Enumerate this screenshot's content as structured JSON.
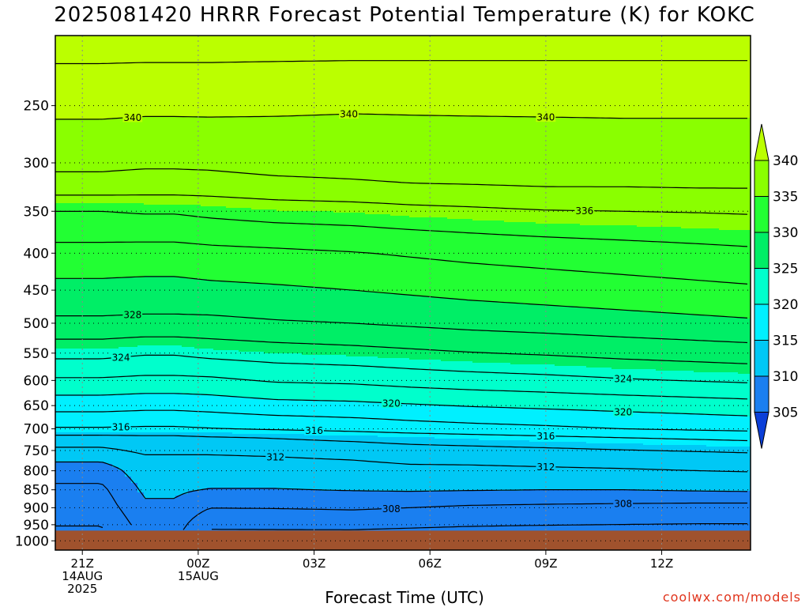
{
  "title": "2025081420 HRRR Forecast Potential Temperature (K) for KOKC",
  "credit": "coolwx.com/models",
  "chart_data": {
    "type": "heatmap",
    "title": "2025081420 HRRR Forecast Potential Temperature (K) for KOKC",
    "xlabel": "Forecast Time (UTC)",
    "ylabel": "",
    "x_start_hour": -0.7,
    "x_end_hour": 17.3,
    "p_top": 200,
    "p_bottom": 1030,
    "surface_pressure": 968,
    "x_ticks": [
      {
        "hour": 0,
        "lines": [
          "21Z",
          "14AUG",
          "2025"
        ]
      },
      {
        "hour": 3,
        "lines": [
          "00Z",
          "15AUG"
        ]
      },
      {
        "hour": 6,
        "lines": [
          "03Z"
        ]
      },
      {
        "hour": 9,
        "lines": [
          "06Z"
        ]
      },
      {
        "hour": 12,
        "lines": [
          "09Z"
        ]
      },
      {
        "hour": 15,
        "lines": [
          "12Z"
        ]
      }
    ],
    "y_ticks": [
      250,
      300,
      350,
      400,
      450,
      500,
      550,
      600,
      650,
      700,
      750,
      800,
      850,
      900,
      950,
      1000
    ],
    "grid": true,
    "colorbar": {
      "levels": [
        305,
        310,
        315,
        320,
        325,
        330,
        335,
        340
      ],
      "labels": [
        "305",
        "310",
        "315",
        "320",
        "325",
        "330",
        "335",
        "340"
      ],
      "colors": [
        "#0b3fd8",
        "#1a7ff0",
        "#00c8f5",
        "#00f0ff",
        "#00ffcc",
        "#00ee66",
        "#22ff33",
        "#8aff00",
        "#bbff00"
      ],
      "extend": "both"
    },
    "surface_color": "#a0522d",
    "contour_interval": 2,
    "contour_labels": [
      {
        "value": 340,
        "hour": 1.3
      },
      {
        "value": 340,
        "hour": 6.9
      },
      {
        "value": 340,
        "hour": 12.0
      },
      {
        "value": 336,
        "hour": 13.0
      },
      {
        "value": 328,
        "hour": 1.3
      },
      {
        "value": 324,
        "hour": 1.0
      },
      {
        "value": 324,
        "hour": 14.0
      },
      {
        "value": 320,
        "hour": 8.0
      },
      {
        "value": 320,
        "hour": 14.0
      },
      {
        "value": 316,
        "hour": 1.0
      },
      {
        "value": 316,
        "hour": 6.0
      },
      {
        "value": 316,
        "hour": 12.0
      },
      {
        "value": 312,
        "hour": 5.0
      },
      {
        "value": 312,
        "hour": 12.0
      },
      {
        "value": 308,
        "hour": 8.0
      },
      {
        "value": 308,
        "hour": 14.0
      }
    ],
    "profiles": [
      {
        "hour": -0.7,
        "theta": [
          [
            968,
            305.8
          ],
          [
            940,
            306.2
          ],
          [
            890,
            307.0
          ],
          [
            850,
            307.6
          ],
          [
            800,
            308.8
          ],
          [
            760,
            311.0
          ],
          [
            720,
            313.3
          ],
          [
            700,
            315.8
          ],
          [
            650,
            318.8
          ],
          [
            600,
            321.7
          ],
          [
            550,
            324.6
          ],
          [
            500,
            327.6
          ],
          [
            450,
            329.4
          ],
          [
            400,
            331.3
          ],
          [
            350,
            334.0
          ],
          [
            320,
            337.5
          ],
          [
            300,
            338.4
          ],
          [
            250,
            340.5
          ],
          [
            200,
            343.0
          ]
        ]
      },
      {
        "hour": 0.5,
        "theta": [
          [
            968,
            305.8
          ],
          [
            940,
            306.2
          ],
          [
            890,
            307.0
          ],
          [
            850,
            307.6
          ],
          [
            800,
            308.8
          ],
          [
            760,
            311.0
          ],
          [
            720,
            313.3
          ],
          [
            700,
            315.8
          ],
          [
            650,
            318.8
          ],
          [
            600,
            321.7
          ],
          [
            550,
            324.6
          ],
          [
            500,
            327.6
          ],
          [
            450,
            329.4
          ],
          [
            400,
            331.3
          ],
          [
            350,
            334.0
          ],
          [
            320,
            337.5
          ],
          [
            300,
            338.4
          ],
          [
            250,
            340.5
          ],
          [
            200,
            343.0
          ]
        ]
      },
      {
        "hour": 1.6,
        "theta": [
          [
            968,
            308.6
          ],
          [
            940,
            309.0
          ],
          [
            890,
            309.8
          ],
          [
            850,
            310.3
          ],
          [
            800,
            311.2
          ],
          [
            760,
            312.0
          ],
          [
            720,
            313.5
          ],
          [
            700,
            315.7
          ],
          [
            650,
            318.6
          ],
          [
            600,
            321.5
          ],
          [
            550,
            324.2
          ],
          [
            500,
            327.5
          ],
          [
            450,
            329.3
          ],
          [
            400,
            331.2
          ],
          [
            350,
            334.2
          ],
          [
            320,
            337.3
          ],
          [
            300,
            338.3
          ],
          [
            250,
            340.4
          ],
          [
            200,
            343.0
          ]
        ]
      },
      {
        "hour": 2.4,
        "theta": [
          [
            968,
            308.6
          ],
          [
            940,
            309.0
          ],
          [
            890,
            309.8
          ],
          [
            850,
            310.3
          ],
          [
            800,
            311.2
          ],
          [
            760,
            312.0
          ],
          [
            720,
            313.5
          ],
          [
            700,
            315.7
          ],
          [
            650,
            318.6
          ],
          [
            600,
            321.5
          ],
          [
            550,
            324.2
          ],
          [
            500,
            327.5
          ],
          [
            450,
            329.3
          ],
          [
            400,
            331.2
          ],
          [
            350,
            334.2
          ],
          [
            320,
            337.3
          ],
          [
            300,
            338.3
          ],
          [
            250,
            340.4
          ],
          [
            200,
            343.0
          ]
        ]
      },
      {
        "hour": 3.3,
        "theta": [
          [
            968,
            305.9
          ],
          [
            940,
            306.6
          ],
          [
            890,
            308.4
          ],
          [
            850,
            309.9
          ],
          [
            800,
            311.3
          ],
          [
            760,
            312.0
          ],
          [
            720,
            313.8
          ],
          [
            700,
            315.9
          ],
          [
            650,
            318.8
          ],
          [
            600,
            321.6
          ],
          [
            550,
            324.6
          ],
          [
            500,
            327.5
          ],
          [
            450,
            329.5
          ],
          [
            400,
            331.4
          ],
          [
            350,
            334.5
          ],
          [
            320,
            337.3
          ],
          [
            300,
            338.4
          ],
          [
            250,
            340.4
          ],
          [
            200,
            343.0
          ]
        ]
      },
      {
        "hour": 5.0,
        "theta": [
          [
            968,
            305.9
          ],
          [
            940,
            306.8
          ],
          [
            890,
            308.4
          ],
          [
            850,
            309.9
          ],
          [
            800,
            311.3
          ],
          [
            760,
            312.1
          ],
          [
            720,
            314.1
          ],
          [
            700,
            316.2
          ],
          [
            650,
            319.3
          ],
          [
            600,
            322.2
          ],
          [
            550,
            325.0
          ],
          [
            500,
            327.8
          ],
          [
            450,
            329.7
          ],
          [
            400,
            331.6
          ],
          [
            350,
            334.9
          ],
          [
            320,
            337.6
          ],
          [
            300,
            338.7
          ],
          [
            250,
            340.3
          ],
          [
            200,
            343.0
          ]
        ]
      },
      {
        "hour": 7.0,
        "theta": [
          [
            968,
            305.9
          ],
          [
            940,
            307.0
          ],
          [
            890,
            308.5
          ],
          [
            850,
            310.1
          ],
          [
            800,
            311.4
          ],
          [
            760,
            312.3
          ],
          [
            720,
            314.5
          ],
          [
            700,
            316.6
          ],
          [
            650,
            319.5
          ],
          [
            600,
            322.4
          ],
          [
            550,
            325.3
          ],
          [
            500,
            328.0
          ],
          [
            450,
            330.0
          ],
          [
            400,
            331.9
          ],
          [
            350,
            335.1
          ],
          [
            320,
            337.8
          ],
          [
            300,
            338.8
          ],
          [
            250,
            340.2
          ],
          [
            200,
            343.0
          ]
        ]
      },
      {
        "hour": 8.5,
        "theta": [
          [
            968,
            305.7
          ],
          [
            940,
            306.8
          ],
          [
            890,
            308.3
          ],
          [
            850,
            310.2
          ],
          [
            800,
            311.6
          ],
          [
            760,
            312.6
          ],
          [
            720,
            314.9
          ],
          [
            700,
            317.0
          ],
          [
            650,
            319.8
          ],
          [
            600,
            322.8
          ],
          [
            550,
            325.6
          ],
          [
            500,
            328.3
          ],
          [
            450,
            330.3
          ],
          [
            400,
            332.2
          ],
          [
            350,
            335.4
          ],
          [
            320,
            338.0
          ],
          [
            300,
            339.0
          ],
          [
            250,
            340.2
          ],
          [
            200,
            343.0
          ]
        ]
      },
      {
        "hour": 10.0,
        "theta": [
          [
            968,
            305.5
          ],
          [
            940,
            306.6
          ],
          [
            890,
            308.1
          ],
          [
            850,
            310.1
          ],
          [
            800,
            311.6
          ],
          [
            760,
            312.7
          ],
          [
            720,
            315.2
          ],
          [
            700,
            317.3
          ],
          [
            650,
            320.1
          ],
          [
            600,
            323.1
          ],
          [
            550,
            325.9
          ],
          [
            500,
            328.6
          ],
          [
            450,
            330.6
          ],
          [
            400,
            332.5
          ],
          [
            350,
            335.6
          ],
          [
            320,
            338.1
          ],
          [
            300,
            339.1
          ],
          [
            250,
            340.2
          ],
          [
            200,
            343.0
          ]
        ]
      },
      {
        "hour": 12.0,
        "theta": [
          [
            968,
            305.3
          ],
          [
            940,
            306.5
          ],
          [
            890,
            308.0
          ],
          [
            850,
            310.0
          ],
          [
            800,
            311.7
          ],
          [
            760,
            312.9
          ],
          [
            720,
            315.6
          ],
          [
            700,
            317.6
          ],
          [
            650,
            320.4
          ],
          [
            600,
            323.4
          ],
          [
            550,
            326.2
          ],
          [
            500,
            328.9
          ],
          [
            450,
            330.9
          ],
          [
            400,
            332.8
          ],
          [
            350,
            335.9
          ],
          [
            320,
            338.3
          ],
          [
            300,
            339.2
          ],
          [
            250,
            340.2
          ],
          [
            200,
            343.0
          ]
        ]
      },
      {
        "hour": 14.0,
        "theta": [
          [
            968,
            305.2
          ],
          [
            940,
            306.4
          ],
          [
            890,
            307.9
          ],
          [
            850,
            310.0
          ],
          [
            800,
            311.8
          ],
          [
            760,
            313.2
          ],
          [
            720,
            316.0
          ],
          [
            700,
            318.0
          ],
          [
            650,
            320.7
          ],
          [
            600,
            323.8
          ],
          [
            550,
            326.6
          ],
          [
            500,
            329.2
          ],
          [
            450,
            331.2
          ],
          [
            400,
            333.1
          ],
          [
            350,
            336.0
          ],
          [
            320,
            338.3
          ],
          [
            300,
            339.3
          ],
          [
            250,
            340.2
          ],
          [
            200,
            343.0
          ]
        ]
      },
      {
        "hour": 16.0,
        "theta": [
          [
            968,
            305.1
          ],
          [
            940,
            306.3
          ],
          [
            890,
            307.8
          ],
          [
            850,
            310.2
          ],
          [
            800,
            312.0
          ],
          [
            760,
            313.5
          ],
          [
            720,
            316.3
          ],
          [
            700,
            318.3
          ],
          [
            650,
            321.0
          ],
          [
            600,
            324.1
          ],
          [
            550,
            326.9
          ],
          [
            500,
            329.5
          ],
          [
            450,
            331.5
          ],
          [
            400,
            333.4
          ],
          [
            350,
            336.1
          ],
          [
            320,
            338.4
          ],
          [
            300,
            339.3
          ],
          [
            250,
            340.2
          ],
          [
            200,
            343.0
          ]
        ]
      },
      {
        "hour": 17.3,
        "theta": [
          [
            968,
            305.1
          ],
          [
            940,
            306.3
          ],
          [
            890,
            307.8
          ],
          [
            850,
            310.3
          ],
          [
            800,
            312.1
          ],
          [
            760,
            313.7
          ],
          [
            720,
            316.5
          ],
          [
            700,
            318.5
          ],
          [
            650,
            321.2
          ],
          [
            600,
            324.3
          ],
          [
            550,
            327.1
          ],
          [
            500,
            329.7
          ],
          [
            450,
            331.7
          ],
          [
            400,
            333.6
          ],
          [
            350,
            336.2
          ],
          [
            320,
            338.4
          ],
          [
            300,
            339.3
          ],
          [
            250,
            340.2
          ],
          [
            200,
            343.0
          ]
        ]
      }
    ]
  }
}
